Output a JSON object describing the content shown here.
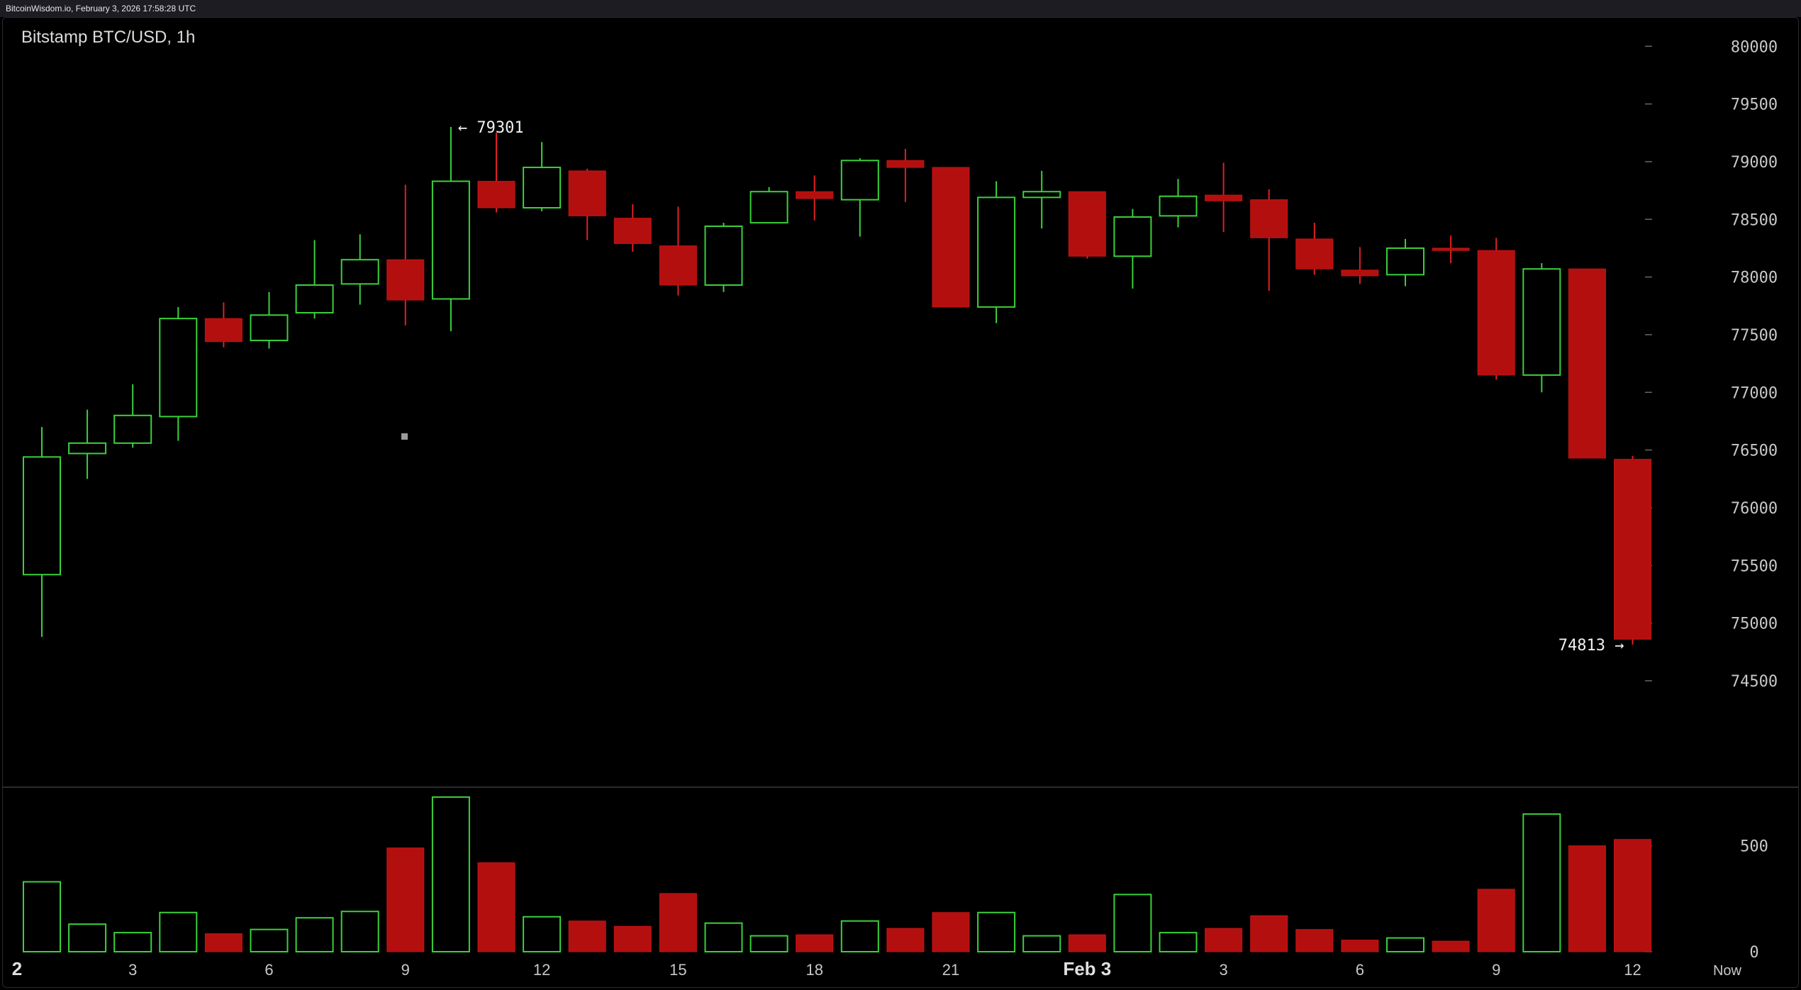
{
  "header": {
    "source": "BitcoinWisdom.io, February 3, 2026 17:58:28 UTC"
  },
  "chart_data": {
    "type": "candlestick",
    "title": "Bitstamp BTC/USD, 1h",
    "colors": {
      "up": "#3ad13a",
      "down": "#b30f0f",
      "down_wick": "#e02020",
      "axis_text": "#c8c8c8",
      "grid_tick": "#666666",
      "divider": "#3a3a40"
    },
    "price_axis": {
      "min": 74100,
      "max": 80100,
      "ticks": [
        80000,
        79500,
        79000,
        78500,
        78000,
        77500,
        77000,
        76500,
        76000,
        75500,
        75000,
        74500
      ]
    },
    "volume_axis": {
      "min": 0,
      "max": 760,
      "ticks": [
        500,
        0
      ]
    },
    "x_tick_labels": [
      {
        "index": 0,
        "label": "2"
      },
      {
        "index": 2,
        "label": "3"
      },
      {
        "index": 5,
        "label": "6"
      },
      {
        "index": 8,
        "label": "9"
      },
      {
        "index": 11,
        "label": "12"
      },
      {
        "index": 14,
        "label": "15"
      },
      {
        "index": 17,
        "label": "18"
      },
      {
        "index": 20,
        "label": "21"
      },
      {
        "index": 23,
        "label": "Feb 3"
      },
      {
        "index": 26,
        "label": "3"
      },
      {
        "index": 29,
        "label": "6"
      },
      {
        "index": 32,
        "label": "9"
      },
      {
        "index": 35,
        "label": "12"
      },
      {
        "index": 37,
        "label": "Now"
      }
    ],
    "annotations": [
      {
        "index": 9,
        "price": 79301,
        "text": "← 79301",
        "side": "right"
      },
      {
        "index": 35,
        "price": 74813,
        "text": "74813 →",
        "side": "left"
      }
    ],
    "candles": [
      {
        "open": 75420,
        "high": 76700,
        "low": 74880,
        "close": 76440,
        "volume": 330
      },
      {
        "open": 76470,
        "high": 76850,
        "low": 76250,
        "close": 76560,
        "volume": 130
      },
      {
        "open": 76560,
        "high": 77070,
        "low": 76520,
        "close": 76800,
        "volume": 90
      },
      {
        "open": 76790,
        "high": 77740,
        "low": 76580,
        "close": 77640,
        "volume": 185
      },
      {
        "open": 77640,
        "high": 77780,
        "low": 77390,
        "close": 77440,
        "volume": 85
      },
      {
        "open": 77450,
        "high": 77870,
        "low": 77380,
        "close": 77670,
        "volume": 105
      },
      {
        "open": 77690,
        "high": 78320,
        "low": 77640,
        "close": 77930,
        "volume": 160
      },
      {
        "open": 77940,
        "high": 78370,
        "low": 77760,
        "close": 78150,
        "volume": 190
      },
      {
        "open": 78150,
        "high": 78800,
        "low": 77580,
        "close": 77800,
        "volume": 490
      },
      {
        "open": 77810,
        "high": 79301,
        "low": 77530,
        "close": 78830,
        "volume": 730
      },
      {
        "open": 78830,
        "high": 79250,
        "low": 78560,
        "close": 78600,
        "volume": 420
      },
      {
        "open": 78600,
        "high": 79170,
        "low": 78570,
        "close": 78950,
        "volume": 165
      },
      {
        "open": 78920,
        "high": 78940,
        "low": 78320,
        "close": 78530,
        "volume": 145
      },
      {
        "open": 78510,
        "high": 78630,
        "low": 78220,
        "close": 78290,
        "volume": 120
      },
      {
        "open": 78270,
        "high": 78610,
        "low": 77840,
        "close": 77930,
        "volume": 275
      },
      {
        "open": 77930,
        "high": 78470,
        "low": 77870,
        "close": 78440,
        "volume": 135
      },
      {
        "open": 78470,
        "high": 78780,
        "low": 78470,
        "close": 78740,
        "volume": 75
      },
      {
        "open": 78740,
        "high": 78880,
        "low": 78490,
        "close": 78680,
        "volume": 80
      },
      {
        "open": 78670,
        "high": 79030,
        "low": 78350,
        "close": 79010,
        "volume": 145
      },
      {
        "open": 79010,
        "high": 79110,
        "low": 78650,
        "close": 78950,
        "volume": 110
      },
      {
        "open": 78950,
        "high": 78950,
        "low": 77740,
        "close": 77740,
        "volume": 185
      },
      {
        "open": 77740,
        "high": 78830,
        "low": 77600,
        "close": 78690,
        "volume": 185
      },
      {
        "open": 78690,
        "high": 78920,
        "low": 78420,
        "close": 78740,
        "volume": 75
      },
      {
        "open": 78740,
        "high": 78740,
        "low": 78160,
        "close": 78180,
        "volume": 80
      },
      {
        "open": 78180,
        "high": 78590,
        "low": 77900,
        "close": 78520,
        "volume": 270
      },
      {
        "open": 78530,
        "high": 78850,
        "low": 78430,
        "close": 78700,
        "volume": 90
      },
      {
        "open": 78710,
        "high": 78990,
        "low": 78390,
        "close": 78660,
        "volume": 110
      },
      {
        "open": 78670,
        "high": 78760,
        "low": 77880,
        "close": 78340,
        "volume": 170
      },
      {
        "open": 78330,
        "high": 78470,
        "low": 78020,
        "close": 78070,
        "volume": 105
      },
      {
        "open": 78060,
        "high": 78260,
        "low": 77940,
        "close": 78010,
        "volume": 55
      },
      {
        "open": 78020,
        "high": 78330,
        "low": 77920,
        "close": 78250,
        "volume": 65
      },
      {
        "open": 78250,
        "high": 78360,
        "low": 78120,
        "close": 78230,
        "volume": 50
      },
      {
        "open": 78230,
        "high": 78340,
        "low": 77110,
        "close": 77150,
        "volume": 295
      },
      {
        "open": 77150,
        "high": 78120,
        "low": 77000,
        "close": 78070,
        "volume": 650
      },
      {
        "open": 78070,
        "high": 78070,
        "low": 76430,
        "close": 76430,
        "volume": 500
      },
      {
        "open": 76420,
        "high": 76450,
        "low": 74813,
        "close": 74860,
        "volume": 530
      }
    ]
  }
}
